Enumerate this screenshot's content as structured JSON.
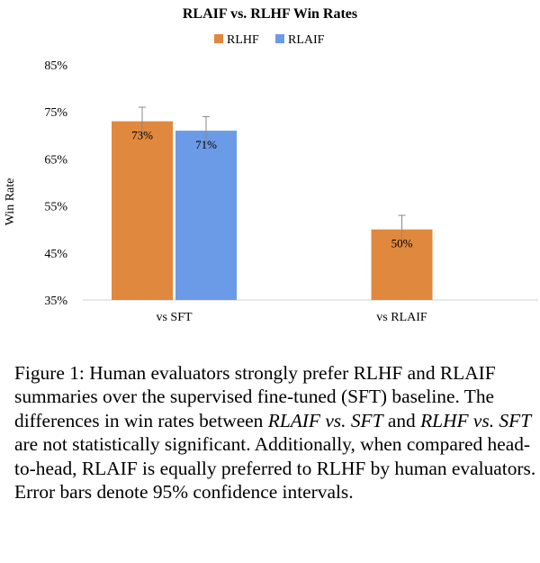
{
  "chart_data": {
    "type": "bar",
    "title": "RLAIF vs. RLHF Win Rates",
    "ylabel": "Win Rate",
    "xlabel": "",
    "categories": [
      "vs SFT",
      "vs RLAIF"
    ],
    "series": [
      {
        "name": "RLHF",
        "color": "#e0883e",
        "values": [
          73,
          50
        ],
        "error_upper": [
          76,
          53
        ],
        "data_labels": [
          "73%",
          "50%"
        ]
      },
      {
        "name": "RLAIF",
        "color": "#6b9be6",
        "values": [
          71,
          null
        ],
        "error_upper": [
          74,
          null
        ],
        "data_labels": [
          "71%",
          ""
        ]
      }
    ],
    "ylim": [
      35,
      85
    ],
    "yticks": [
      35,
      45,
      55,
      65,
      75,
      85
    ],
    "ytick_labels": [
      "35%",
      "45%",
      "55%",
      "65%",
      "75%",
      "85%"
    ],
    "grid": false,
    "legend_position": "top-center"
  },
  "caption": {
    "fig_label": "Figure 1:",
    "text_1": "Human evaluators strongly prefer RLHF and RLAIF summaries over the supervised fine-tuned (SFT) baseline. The differences in win rates between",
    "em_1": "RLAIF vs. SFT",
    "text_2": "and",
    "em_2": "RLHF vs. SFT",
    "text_3": "are not statistically significant. Additionally, when compared head-to-head, RLAIF is equally preferred to RLHF by human evaluators. Error bars denote 95% confidence intervals."
  }
}
